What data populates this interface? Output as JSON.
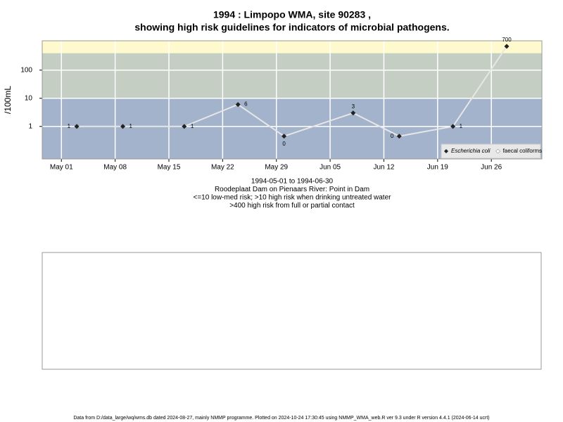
{
  "chart_data": {
    "type": "line",
    "title": "1994 : Limpopo WMA, site 90283 ,",
    "title_line2": "showing high risk guidelines for indicators of microbial pathogens.",
    "y_label": "/100mL",
    "subtitle_lines": [
      "1994-05-01 to 1994-06-30",
      "Roodeplaat Dam on Pienaars River: Point in Dam",
      "<=10 low-med risk; >10 high risk when drinking untreated water",
      ">400 high risk from full or partial contact"
    ],
    "footer": "Data from D:/data_large/wq/wms.db dated 2024-08-27, mainly NMMP programme. Plotted on 2024-10-24 17:30:45 using NMMP_WMA_web.R ver 9.3 under R version 4.4.1 (2024-06-14 ucrt)",
    "log_scale_y": true,
    "grid": true,
    "legend_position": "bottom-right",
    "thresholds": [
      10,
      400
    ],
    "band_colors": [
      "#a3b3cc",
      "#c4cec3",
      "#fffacd"
    ],
    "x": [
      "1994-05-03",
      "1994-05-09",
      "1994-05-17",
      "1994-05-24",
      "1994-05-30",
      "1994-06-08",
      "1994-06-14",
      "1994-06-21",
      "1994-06-28"
    ],
    "series": [
      {
        "name": "Escherichia coli",
        "color": "#222222",
        "line_color": "#e6e6e6",
        "values": [
          1,
          1,
          1,
          6,
          0.45,
          3,
          0.45,
          1,
          700
        ],
        "value_labels": [
          "1",
          "1",
          "1",
          "6",
          "0",
          "3",
          "0",
          "1",
          "700"
        ]
      },
      {
        "name": "faecal coliforms",
        "color": "#ffffff",
        "values": [
          null,
          null,
          null,
          null,
          null,
          null,
          null,
          null,
          null
        ]
      }
    ],
    "xlim": [
      "1994-04-28T12:00",
      "1994-07-02T14:00"
    ],
    "xticks": [
      {
        "value": "1994-05-01",
        "label": "May 01"
      },
      {
        "value": "1994-05-08",
        "label": "May 08"
      },
      {
        "value": "1994-05-15",
        "label": "May 15"
      },
      {
        "value": "1994-05-22",
        "label": "May 22"
      },
      {
        "value": "1994-05-29",
        "label": "May 29"
      },
      {
        "value": "1994-06-05",
        "label": "Jun 05"
      },
      {
        "value": "1994-06-12",
        "label": "Jun 12"
      },
      {
        "value": "1994-06-19",
        "label": "Jun 19"
      },
      {
        "value": "1994-06-26",
        "label": "Jun 26"
      }
    ],
    "ylim": [
      0.07,
      1100
    ],
    "yticks": [
      1,
      10,
      100
    ]
  }
}
